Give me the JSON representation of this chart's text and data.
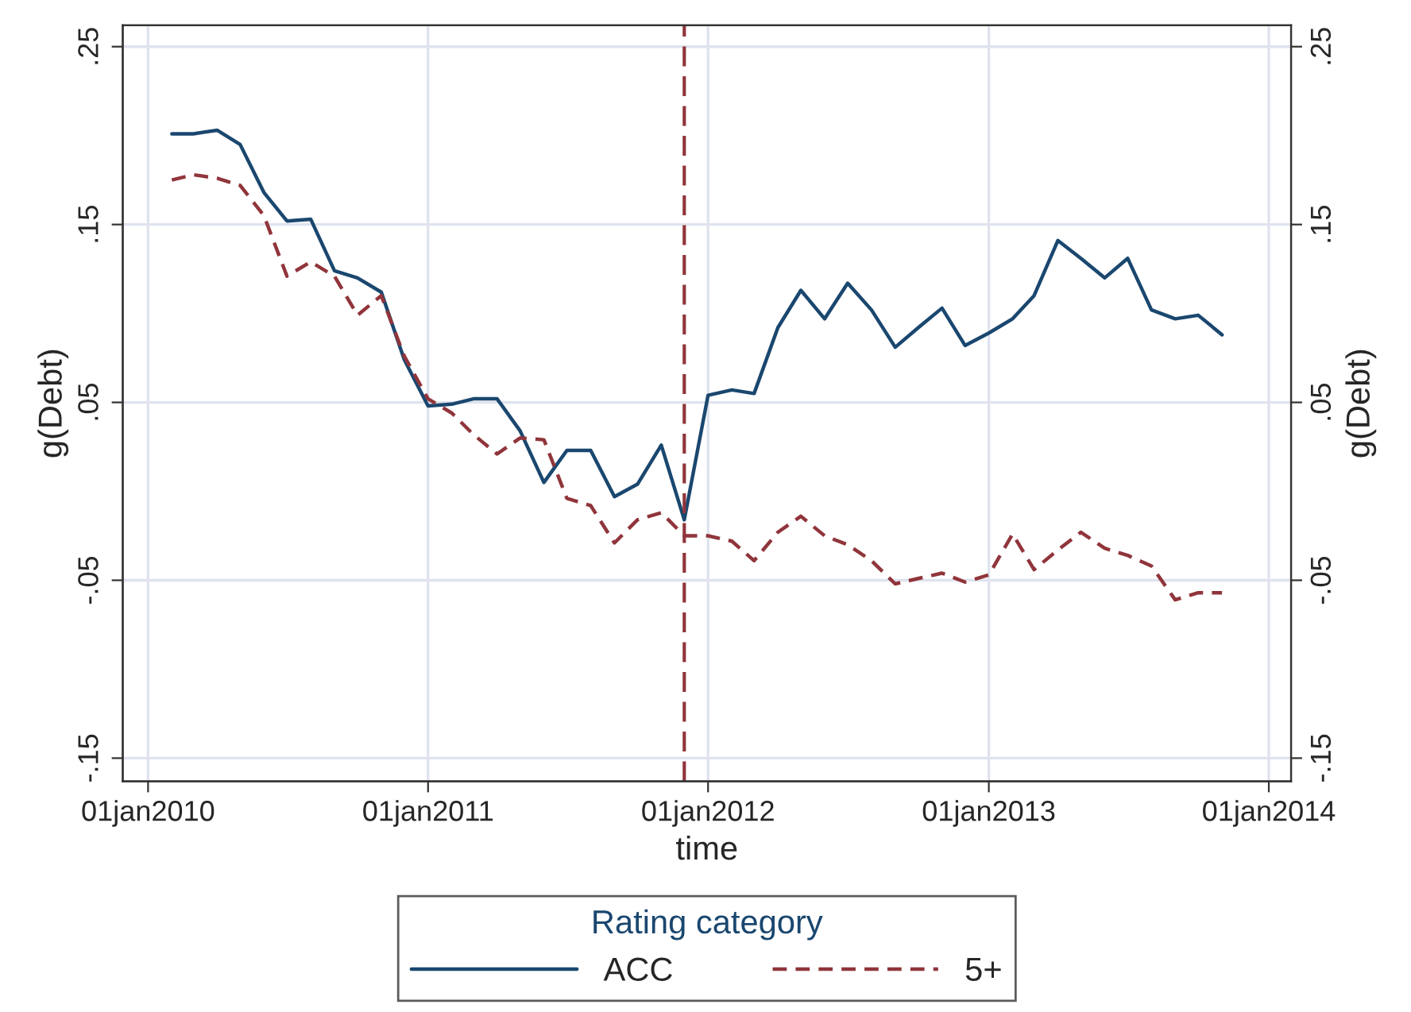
{
  "chart_data": {
    "type": "line",
    "xlabel": "time",
    "ylabel": "g(Debt)",
    "y2label": "g(Debt)",
    "legend_title": "Rating category",
    "legend": "bottom",
    "grid": true,
    "x": [
      "2010-02",
      "2010-03",
      "2010-04",
      "2010-05",
      "2010-06",
      "2010-07",
      "2010-08",
      "2010-09",
      "2010-10",
      "2010-11",
      "2010-12",
      "2011-01",
      "2011-02",
      "2011-03",
      "2011-04",
      "2011-05",
      "2011-06",
      "2011-07",
      "2011-08",
      "2011-09",
      "2011-10",
      "2011-11",
      "2011-12",
      "2012-01",
      "2012-02",
      "2012-03",
      "2012-04",
      "2012-05",
      "2012-06",
      "2012-07",
      "2012-08",
      "2012-09",
      "2012-10",
      "2012-11",
      "2012-12",
      "2013-01",
      "2013-02",
      "2013-03",
      "2013-04",
      "2013-05",
      "2013-06",
      "2013-07",
      "2013-08",
      "2013-09",
      "2013-10",
      "2013-11"
    ],
    "series": [
      {
        "name": "ACC",
        "color": "#1a476f",
        "line_style": "solid",
        "values": [
          0.201,
          0.201,
          0.203,
          0.195,
          0.168,
          0.152,
          0.153,
          0.124,
          0.12,
          0.112,
          0.074,
          0.048,
          0.049,
          0.052,
          0.052,
          0.034,
          0.005,
          0.023,
          0.023,
          -0.003,
          0.004,
          0.026,
          -0.016,
          0.054,
          0.057,
          0.055,
          0.092,
          0.113,
          0.097,
          0.117,
          0.102,
          0.081,
          0.092,
          0.103,
          0.082,
          0.089,
          0.097,
          0.11,
          0.141,
          0.131,
          0.12,
          0.131,
          0.102,
          0.097,
          0.099,
          0.088
        ]
      },
      {
        "name": "5+",
        "color": "#90353b",
        "line_style": "dashed",
        "values": [
          0.175,
          0.178,
          0.176,
          0.172,
          0.155,
          0.121,
          0.129,
          0.121,
          0.099,
          0.11,
          0.076,
          0.052,
          0.044,
          0.032,
          0.021,
          0.03,
          0.029,
          -0.004,
          -0.008,
          -0.029,
          -0.016,
          -0.012,
          -0.025,
          -0.025,
          -0.028,
          -0.039,
          -0.023,
          -0.014,
          -0.025,
          -0.03,
          -0.039,
          -0.052,
          -0.049,
          -0.046,
          -0.051,
          -0.047,
          -0.024,
          -0.044,
          -0.033,
          -0.023,
          -0.032,
          -0.036,
          -0.042,
          -0.061,
          -0.057,
          -0.057
        ]
      }
    ],
    "xlim": [
      "2009-11-29",
      "2014-01-30"
    ],
    "xticks": [
      {
        "value": "2010-01-01",
        "label": "01jan2010"
      },
      {
        "value": "2011-01-01",
        "label": "01jan2011"
      },
      {
        "value": "2012-01-01",
        "label": "01jan2012"
      },
      {
        "value": "2013-01-01",
        "label": "01jan2013"
      },
      {
        "value": "2014-01-01",
        "label": "01jan2014"
      }
    ],
    "ylim": [
      -0.163,
      0.262
    ],
    "yticks": [
      {
        "value": -0.15,
        "label": "-.15"
      },
      {
        "value": -0.05,
        "label": "-.05"
      },
      {
        "value": 0.05,
        "label": ".05"
      },
      {
        "value": 0.15,
        "label": ".15"
      },
      {
        "value": 0.25,
        "label": ".25"
      }
    ],
    "y2lim": [
      -0.163,
      0.262
    ],
    "y2ticks": [
      {
        "value": -0.15,
        "label": "-.15"
      },
      {
        "value": -0.05,
        "label": "-.05"
      },
      {
        "value": 0.05,
        "label": ".05"
      },
      {
        "value": 0.15,
        "label": ".15"
      },
      {
        "value": 0.25,
        "label": ".25"
      }
    ],
    "ref_lines": [
      {
        "axis": "x",
        "value": "2011-12",
        "color": "#90353b",
        "line_style": "dashed"
      }
    ]
  }
}
